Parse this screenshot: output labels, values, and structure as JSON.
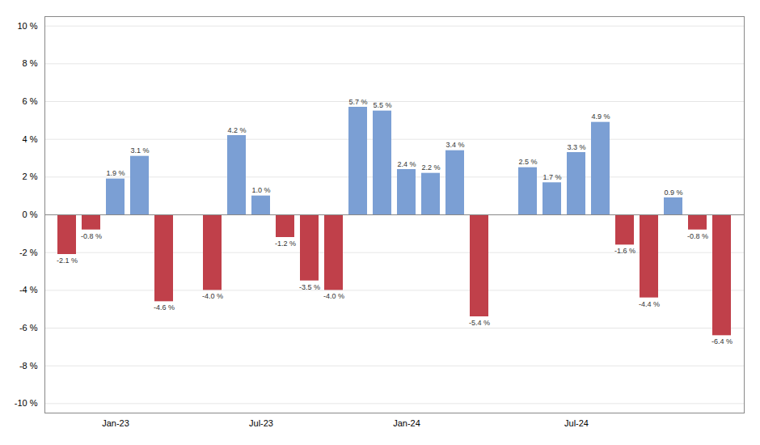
{
  "chart_data": {
    "type": "bar",
    "categories": [
      null,
      null,
      "Jan-23",
      null,
      null,
      null,
      null,
      null,
      "Jul-23",
      null,
      null,
      null,
      null,
      null,
      "Jan-24",
      null,
      null,
      null,
      null,
      null,
      null,
      "Jul-24",
      null,
      null,
      null,
      null,
      null,
      null
    ],
    "values": [
      -2.1,
      -0.8,
      1.9,
      3.1,
      -4.6,
      null,
      -4.0,
      4.2,
      1.0,
      -1.2,
      -3.5,
      -4.0,
      5.7,
      5.5,
      2.4,
      2.2,
      3.4,
      -5.4,
      null,
      2.5,
      1.7,
      3.3,
      4.9,
      -1.6,
      -4.4,
      0.9,
      -0.8,
      -6.4
    ],
    "value_labels": [
      "-2.1 %",
      "-0.8 %",
      "1.9 %",
      "3.1 %",
      "-4.6 %",
      null,
      "-4.0 %",
      "4.2 %",
      "1.0 %",
      "-1.2 %",
      "-3.5 %",
      "-4.0 %",
      "5.7 %",
      "5.5 %",
      "2.4 %",
      "2.2 %",
      "3.4 %",
      "-5.4 %",
      null,
      "2.5 %",
      "1.7 %",
      "3.3 %",
      "4.9 %",
      "-1.6 %",
      "-4.4 %",
      "0.9 %",
      "-0.8 %",
      "-6.4 %"
    ],
    "colors": [
      "#c0404a",
      "#c0404a",
      "#7b9fd4",
      "#7b9fd4",
      "#c0404a",
      null,
      "#c0404a",
      "#7b9fd4",
      "#7b9fd4",
      "#c0404a",
      "#c0404a",
      "#c0404a",
      "#7b9fd4",
      "#7b9fd4",
      "#7b9fd4",
      "#7b9fd4",
      "#7b9fd4",
      "#c0404a",
      null,
      "#7b9fd4",
      "#7b9fd4",
      "#7b9fd4",
      "#7b9fd4",
      "#c0404a",
      "#c0404a",
      "#7b9fd4",
      "#c0404a",
      "#c0404a"
    ],
    "data_labels": true,
    "ylim": [
      -10.5,
      10.5
    ],
    "yticks": [
      {
        "value": -10,
        "label": "-10 %"
      },
      {
        "value": -8,
        "label": "-8 %"
      },
      {
        "value": -6,
        "label": "-6 %"
      },
      {
        "value": -4,
        "label": "-4 %"
      },
      {
        "value": -2,
        "label": "-2 %"
      },
      {
        "value": 0,
        "label": "0 %"
      },
      {
        "value": 2,
        "label": "2 %"
      },
      {
        "value": 4,
        "label": "4 %"
      },
      {
        "value": 6,
        "label": "6 %"
      },
      {
        "value": 8,
        "label": "8 %"
      },
      {
        "value": 10,
        "label": "10 %"
      }
    ],
    "grid": true
  }
}
